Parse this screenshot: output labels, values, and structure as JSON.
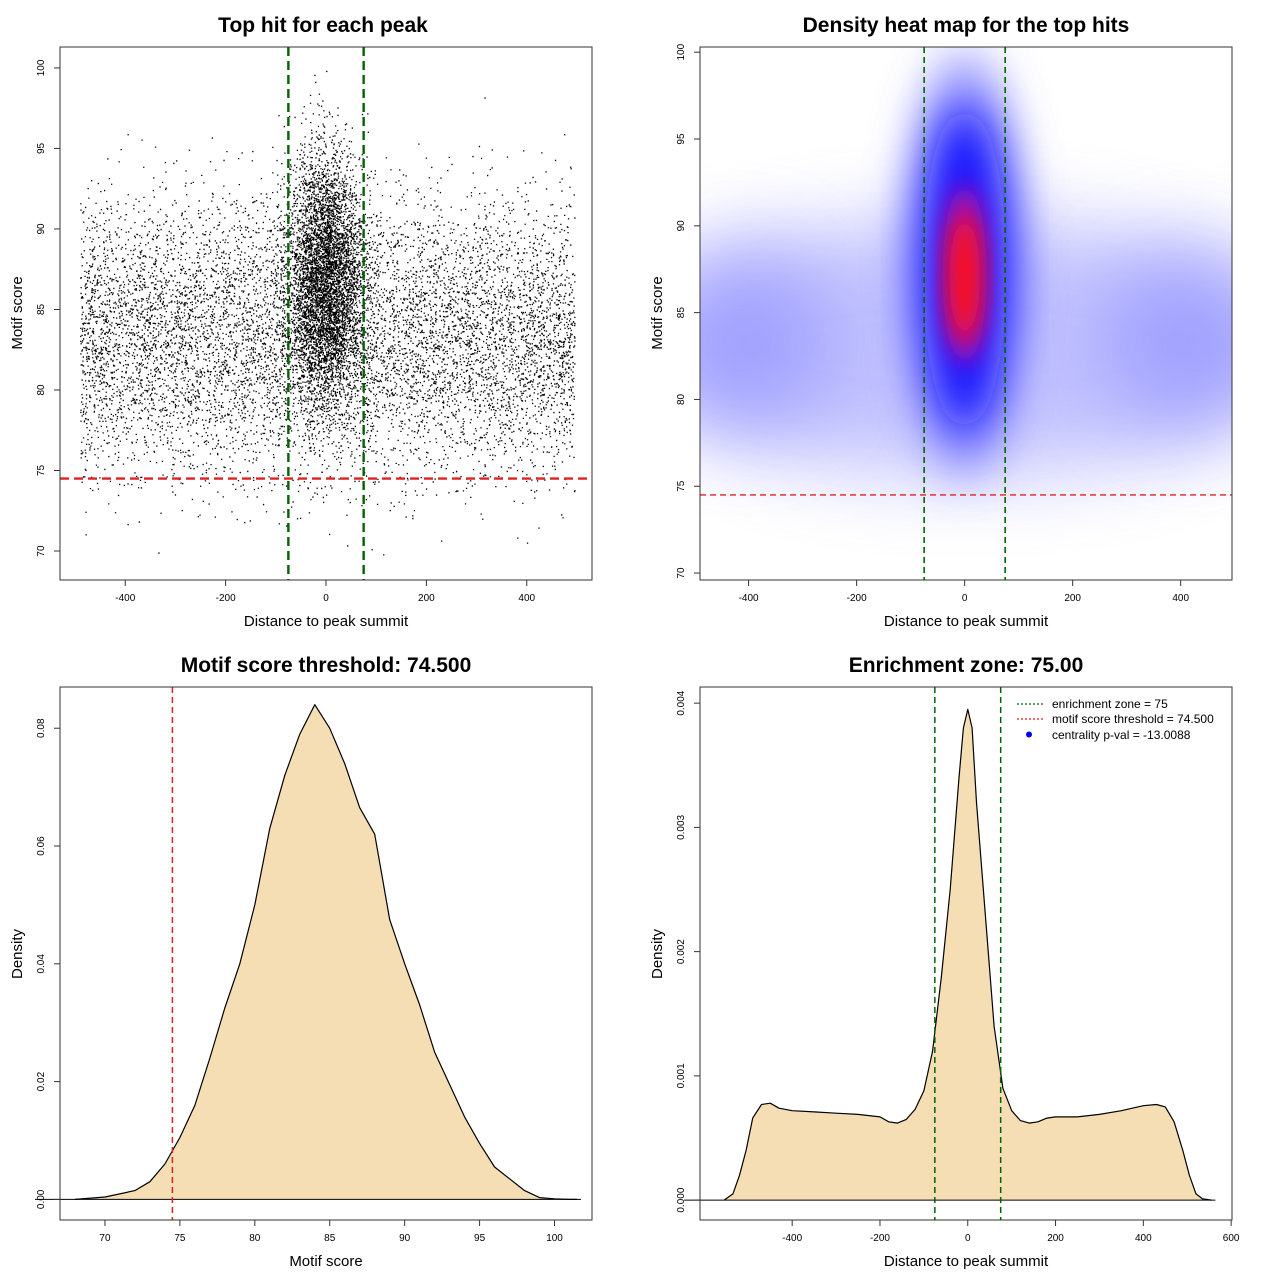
{
  "colors": {
    "enrichment_line": "#006400",
    "threshold_line": "#dd2222",
    "density_fill": "#f5deb3",
    "points": "#000000",
    "heat_low": "#ffffff",
    "heat_mid": "#0000ff",
    "heat_high": "#ff0000",
    "legend_dot": "#0000ff"
  },
  "chart_data": [
    {
      "id": "scatter",
      "type": "scatter",
      "title": "Top hit for each peak",
      "xlabel": "Distance to peak summit",
      "ylabel": "Motif score",
      "xlim": [
        -530,
        530
      ],
      "ylim": [
        68.2,
        101.3
      ],
      "xticks": [
        -400,
        -200,
        0,
        200,
        400
      ],
      "xtick_labels": [
        "-400",
        "-200",
        "0",
        "200",
        "400"
      ],
      "yticks": [
        70,
        75,
        80,
        85,
        90,
        95,
        100
      ],
      "ytick_labels": [
        "70",
        "75",
        "80",
        "85",
        "90",
        "95",
        "100"
      ],
      "vlines": [
        -75,
        75
      ],
      "hline": 74.5,
      "point_density": {
        "x_range": [
          -490,
          495
        ],
        "central_peak_center": 0,
        "central_peak_sd": 38,
        "central_score_center": 87,
        "background_score_center": 83.5,
        "note": "Thousands of top-hit points; dense column around 0"
      }
    },
    {
      "id": "heatmap",
      "type": "heatmap",
      "title": "Density heat map for the top hits",
      "xlabel": "Distance to peak summit",
      "ylabel": "Motif score",
      "xlim": [
        -490,
        495
      ],
      "ylim": [
        69.6,
        100.3
      ],
      "xticks": [
        -400,
        -200,
        0,
        200,
        400
      ],
      "xtick_labels": [
        "-400",
        "-200",
        "0",
        "200",
        "400"
      ],
      "yticks": [
        70,
        75,
        80,
        85,
        90,
        95,
        100
      ],
      "ytick_labels": [
        "70",
        "75",
        "80",
        "85",
        "90",
        "95",
        "100"
      ],
      "vlines": [
        -75,
        75
      ],
      "hline": 74.5,
      "hotspot": {
        "x": 0,
        "y": 87.5
      }
    },
    {
      "id": "score-density",
      "type": "area",
      "title": "Motif score threshold: 74.500",
      "xlabel": "Motif score",
      "ylabel": "Density",
      "xlim": [
        67.0,
        102.5
      ],
      "ylim": [
        -0.0035,
        0.087
      ],
      "xticks": [
        70,
        75,
        80,
        85,
        90,
        95,
        100
      ],
      "xtick_labels": [
        "70",
        "75",
        "80",
        "85",
        "90",
        "95",
        "100"
      ],
      "yticks": [
        0.0,
        0.02,
        0.04,
        0.06,
        0.08
      ],
      "ytick_labels": [
        "0.00",
        "0.02",
        "0.04",
        "0.06",
        "0.08"
      ],
      "vlines": [
        74.5
      ],
      "x": [
        68,
        70,
        72,
        73,
        74,
        75,
        76,
        77,
        78,
        79,
        80,
        81,
        82,
        83,
        84,
        85,
        86,
        87,
        88,
        89,
        90,
        91,
        92,
        93,
        94,
        95,
        96,
        97,
        98,
        99,
        100,
        101,
        101.5
      ],
      "y": [
        0.0,
        0.0004,
        0.0015,
        0.003,
        0.006,
        0.0105,
        0.016,
        0.024,
        0.0325,
        0.04,
        0.05,
        0.063,
        0.072,
        0.079,
        0.084,
        0.08,
        0.074,
        0.0665,
        0.062,
        0.0475,
        0.04,
        0.033,
        0.025,
        0.0195,
        0.014,
        0.0095,
        0.0055,
        0.0035,
        0.0015,
        0.0003,
        0.0001,
        0.0,
        0.0
      ]
    },
    {
      "id": "distance-density",
      "type": "area",
      "title": "Enrichment zone: 75.00",
      "xlabel": "Distance to peak summit",
      "ylabel": "Density",
      "xlim": [
        -610,
        602
      ],
      "ylim": [
        -0.00016,
        0.00413
      ],
      "xticks": [
        -400,
        -200,
        0,
        200,
        400,
        600
      ],
      "xtick_labels": [
        "-400",
        "-200",
        "0",
        "200",
        "400",
        "600"
      ],
      "yticks": [
        0.0,
        0.001,
        0.002,
        0.003,
        0.004
      ],
      "ytick_labels": [
        "0.000",
        "0.001",
        "0.002",
        "0.003",
        "0.004"
      ],
      "vlines": [
        -75,
        75
      ],
      "x": [
        -555,
        -535,
        -520,
        -505,
        -490,
        -470,
        -450,
        -430,
        -400,
        -350,
        -300,
        -250,
        -200,
        -180,
        -160,
        -140,
        -120,
        -100,
        -80,
        -60,
        -40,
        -20,
        -10,
        0,
        10,
        20,
        40,
        60,
        80,
        100,
        120,
        140,
        160,
        180,
        200,
        250,
        300,
        350,
        400,
        430,
        450,
        470,
        490,
        505,
        520,
        535,
        555
      ],
      "y": [
        0.0,
        5e-05,
        0.0002,
        0.0004,
        0.00066,
        0.00077,
        0.00078,
        0.00074,
        0.00072,
        0.00071,
        0.0007,
        0.00069,
        0.00067,
        0.00063,
        0.00062,
        0.00065,
        0.00073,
        0.00088,
        0.0012,
        0.0018,
        0.0025,
        0.0034,
        0.0038,
        0.00395,
        0.0038,
        0.0032,
        0.0023,
        0.0014,
        0.0009,
        0.00072,
        0.00064,
        0.00062,
        0.00063,
        0.00066,
        0.00067,
        0.00067,
        0.00069,
        0.00072,
        0.00076,
        0.00077,
        0.00075,
        0.00063,
        0.0004,
        0.0002,
        5e-05,
        1e-05,
        0.0
      ],
      "legend": [
        {
          "label": "enrichment zone = 75",
          "style": "dotted",
          "color_key": "enrichment_line"
        },
        {
          "label": "motif score threshold = 74.500",
          "style": "dotted",
          "color_key": "threshold_line"
        },
        {
          "label": "centrality p-val = -13.0088",
          "style": "dot",
          "color_key": "legend_dot"
        }
      ],
      "legend_position": "top-right"
    }
  ]
}
